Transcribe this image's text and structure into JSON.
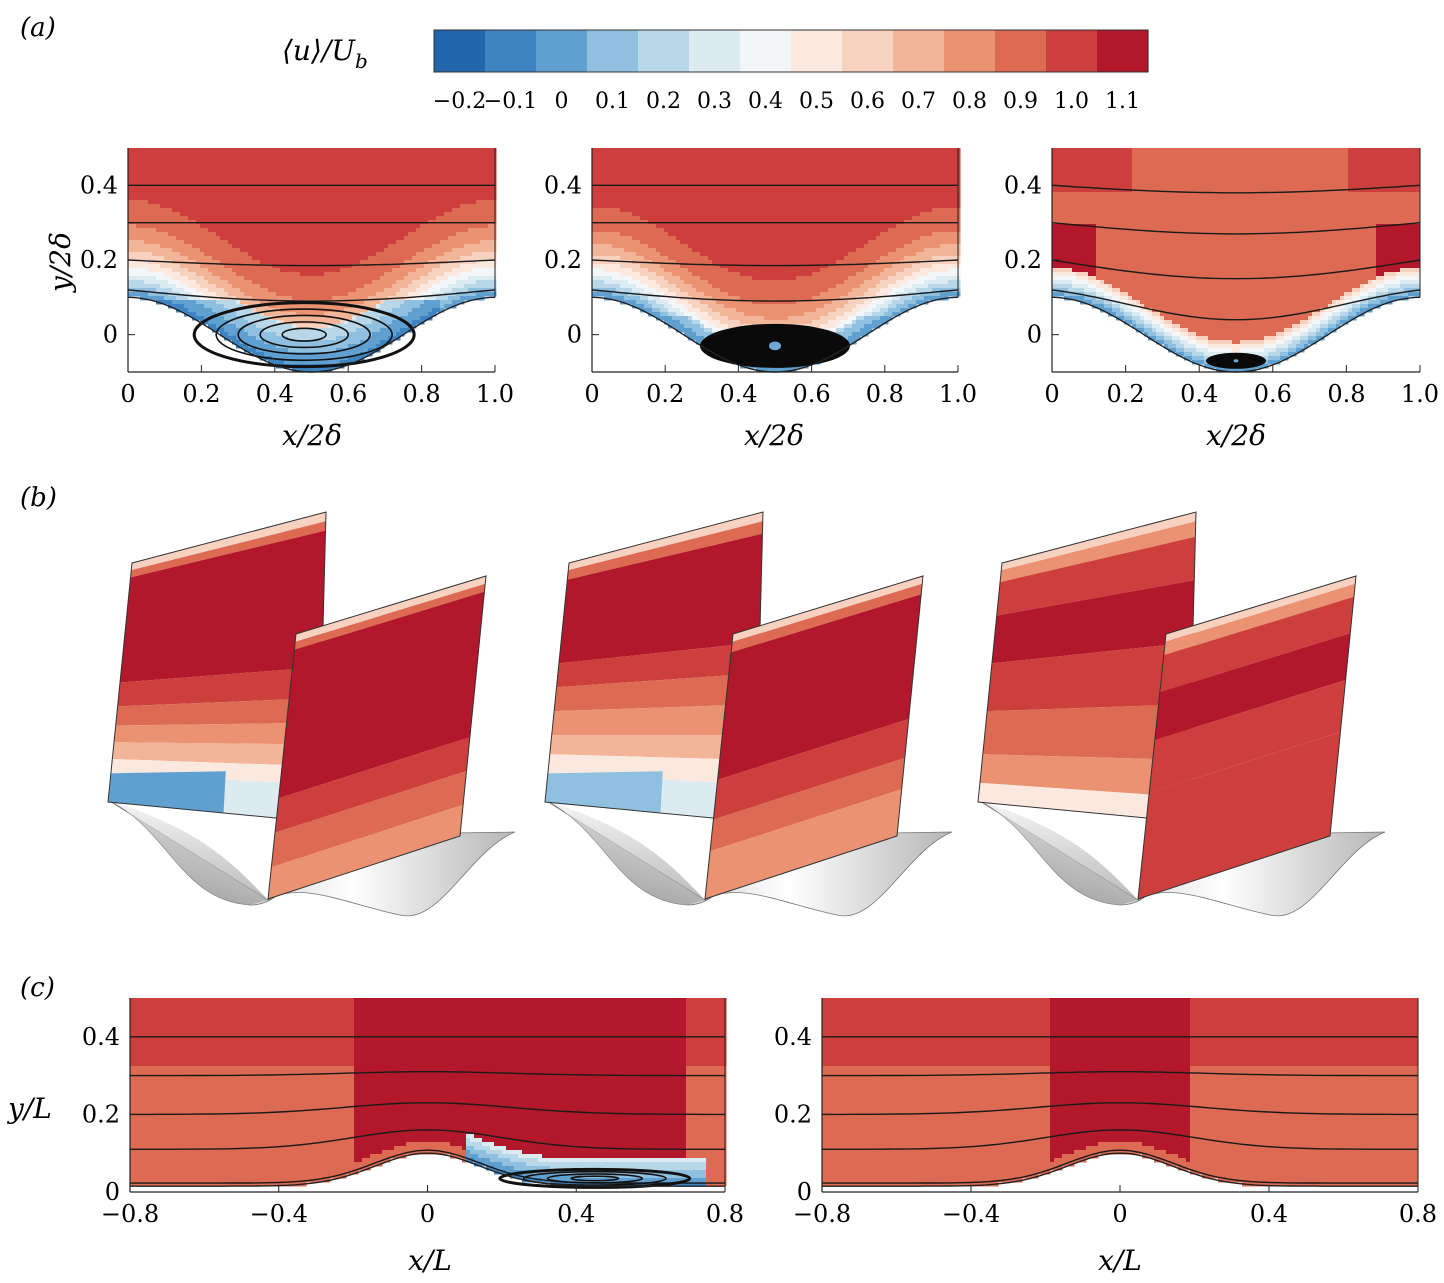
{
  "panel_labels": [
    "(a)",
    "(b)",
    "(c)"
  ],
  "colorbar": {
    "label": "⟨u⟩/U_b",
    "label_main": "⟨u⟩/",
    "label_sub_base": "U",
    "label_sub": "b",
    "ticks": [
      "−0.2",
      "−0.1",
      "0",
      "0.1",
      "0.2",
      "0.3",
      "0.4",
      "0.5",
      "0.6",
      "0.7",
      "0.8",
      "0.9",
      "1.0",
      "1.1"
    ],
    "levels": [
      -0.2,
      -0.1,
      0,
      0.1,
      0.2,
      0.3,
      0.4,
      0.5,
      0.6,
      0.7,
      0.8,
      0.9,
      1.0,
      1.1
    ],
    "colors": [
      "#2166ac",
      "#3d84c1",
      "#5fa0d0",
      "#90c0e0",
      "#b8d8ea",
      "#dceaf2",
      "#f3f6f8",
      "#fbe9e0",
      "#f8d2c0",
      "#f3b598",
      "#ea9272",
      "#dd6a53",
      "#cd3f3c",
      "#b2172b"
    ]
  },
  "panel_a": {
    "ylabel": "y/2δ",
    "xlabel": "x/2δ",
    "xticks": [
      "0",
      "0.2",
      "0.4",
      "0.6",
      "0.8",
      "1.0"
    ],
    "yticks": [
      "0",
      "0.2",
      "0.4"
    ]
  },
  "panel_c": {
    "ylabel": "y/L",
    "xlabel": "x/L",
    "xticks": [
      "−0.8",
      "−0.4",
      "0",
      "0.4",
      "0.8"
    ],
    "yticks": [
      "0",
      "0.2",
      "0.4"
    ]
  },
  "chart_data": [
    {
      "type": "heatmap",
      "name": "(a) contours of mean streamwise velocity with streamlines, three cases",
      "xlabel": "x/2δ",
      "ylabel": "y/2δ",
      "xlim": [
        0,
        1.0
      ],
      "ylim": [
        -0.1,
        0.5
      ],
      "colorbar_range": [
        -0.2,
        1.1
      ],
      "wall_profile": "cosine hill, y=0.1 at x=0 and x=1, minimum y=-0.1 at x=0.5",
      "recirculation_bubble": [
        {
          "case": 1,
          "x_range": [
            0.05,
            0.85
          ],
          "center": [
            0.47,
            0.0
          ]
        },
        {
          "case": 2,
          "x_range": [
            0.1,
            0.85
          ],
          "center": [
            0.5,
            -0.03
          ]
        },
        {
          "case": 3,
          "x_range": [
            0.35,
            0.65
          ],
          "center": [
            0.5,
            -0.07
          ]
        }
      ]
    },
    {
      "type": "heatmap",
      "name": "(b) 3-D perspective slices of mean streamwise velocity over the wall, three cases"
    },
    {
      "type": "heatmap",
      "name": "(c) contours of mean streamwise velocity with streamlines, two cases",
      "xlabel": "x/L",
      "ylabel": "y/L",
      "xlim": [
        -0.8,
        0.8
      ],
      "ylim": [
        0,
        0.5
      ],
      "colorbar_range": [
        -0.2,
        1.1
      ],
      "wall_profile": "Gaussian bump, peak y≈0.1 at x=0",
      "recirculation_bubble": [
        {
          "case": 1,
          "x_range": [
            0.1,
            0.7
          ],
          "center": [
            0.45,
            0.04
          ]
        },
        {
          "case": 2,
          "x_range": null,
          "center": null
        }
      ]
    }
  ]
}
